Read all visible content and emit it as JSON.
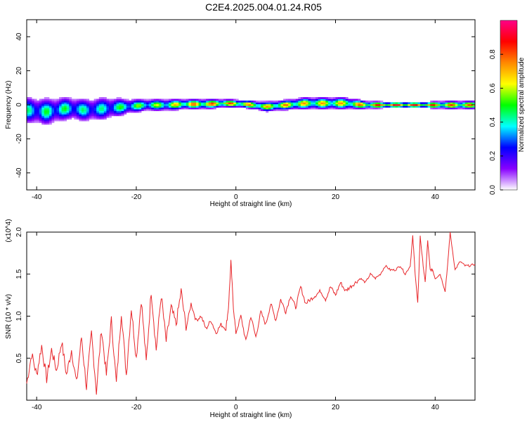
{
  "title": "C2E4.2025.004.01.24.R05",
  "chart_data": [
    {
      "type": "heatmap",
      "xlabel": "Height of straight line (km)",
      "ylabel": "Frequency (Hz)",
      "xlim": [
        -42,
        48
      ],
      "ylim": [
        -50,
        50
      ],
      "xticks": [
        -40,
        -20,
        0,
        20,
        40
      ],
      "yticks": [
        -40,
        -20,
        0,
        20,
        40
      ],
      "colorbar": {
        "label": "Normalized spectral amplitude",
        "range": [
          0,
          1
        ],
        "ticks": [
          "0.0",
          "0.2",
          "0.4",
          "0.6",
          "0.8"
        ],
        "colors": [
          "#ffffff",
          "#8800ff",
          "#0000ff",
          "#00ffff",
          "#00ff00",
          "#ffff00",
          "#ff8800",
          "#ff0000",
          "#ff0088"
        ]
      },
      "band": [
        {
          "x": -42,
          "f": -3,
          "amp": 0.45,
          "spread": 7
        },
        {
          "x": -38,
          "f": -4,
          "amp": 0.5,
          "spread": 7
        },
        {
          "x": -34,
          "f": -2,
          "amp": 0.5,
          "spread": 6
        },
        {
          "x": -30,
          "f": -3,
          "amp": 0.45,
          "spread": 6
        },
        {
          "x": -26,
          "f": -2,
          "amp": 0.45,
          "spread": 6
        },
        {
          "x": -22,
          "f": -1,
          "amp": 0.55,
          "spread": 4
        },
        {
          "x": -18,
          "f": 0,
          "amp": 0.6,
          "spread": 3
        },
        {
          "x": -14,
          "f": 0,
          "amp": 0.65,
          "spread": 3
        },
        {
          "x": -10,
          "f": 0.5,
          "amp": 0.8,
          "spread": 2.5
        },
        {
          "x": -6,
          "f": 0.5,
          "amp": 0.85,
          "spread": 2.5
        },
        {
          "x": -2,
          "f": 1,
          "amp": 0.85,
          "spread": 2
        },
        {
          "x": 2,
          "f": 0.5,
          "amp": 0.8,
          "spread": 2
        },
        {
          "x": 6,
          "f": -1,
          "amp": 0.75,
          "spread": 2.5
        },
        {
          "x": 10,
          "f": 0,
          "amp": 0.8,
          "spread": 2.5
        },
        {
          "x": 14,
          "f": 1,
          "amp": 0.75,
          "spread": 3
        },
        {
          "x": 18,
          "f": 1,
          "amp": 0.75,
          "spread": 3
        },
        {
          "x": 22,
          "f": 1,
          "amp": 0.75,
          "spread": 3
        },
        {
          "x": 26,
          "f": 0,
          "amp": 0.85,
          "spread": 2
        },
        {
          "x": 30,
          "f": 0,
          "amp": 0.95,
          "spread": 1.5
        },
        {
          "x": 34,
          "f": 0,
          "amp": 0.95,
          "spread": 1.5
        },
        {
          "x": 38,
          "f": 0,
          "amp": 0.9,
          "spread": 1.5
        },
        {
          "x": 42,
          "f": 0,
          "amp": 0.85,
          "spread": 2
        },
        {
          "x": 46,
          "f": 0,
          "amp": 0.85,
          "spread": 2
        },
        {
          "x": 48,
          "f": 0,
          "amp": 0.8,
          "spread": 2
        }
      ]
    },
    {
      "type": "line",
      "xlabel": "Height of straight line (km)",
      "ylabel": "SNR (10 * v/v)",
      "y_multiplier": "(x10^4)",
      "xlim": [
        -42,
        48
      ],
      "ylim": [
        0,
        2.0
      ],
      "xticks": [
        -40,
        -20,
        0,
        20,
        40
      ],
      "yticks": [
        "0.5",
        "1.0",
        "1.5",
        "2.0"
      ],
      "series": [
        {
          "color": "#e8262a",
          "x": [
            -42,
            -41,
            -40,
            -39,
            -38,
            -37,
            -36,
            -35,
            -34,
            -33,
            -32,
            -31,
            -30,
            -29,
            -28,
            -27,
            -26,
            -25,
            -24,
            -23,
            -22,
            -21,
            -20,
            -19,
            -18,
            -17,
            -16,
            -15,
            -14,
            -13,
            -12,
            -11,
            -10,
            -9,
            -8,
            -7,
            -6,
            -5,
            -4,
            -3,
            -2,
            -1.5,
            -1,
            -0.5,
            0,
            1,
            2,
            3,
            4,
            5,
            6,
            7,
            8,
            9,
            10,
            11,
            12,
            13,
            14,
            15,
            16,
            17,
            18,
            19,
            20,
            21,
            22,
            23,
            24,
            25,
            26,
            27,
            28,
            29,
            30,
            31,
            32,
            33,
            34,
            35,
            35.5,
            36,
            36.5,
            37,
            37.5,
            38,
            38.5,
            39,
            39.5,
            40,
            41,
            42,
            42.5,
            43,
            44,
            45,
            46,
            47,
            48
          ],
          "y": [
            0.2,
            0.55,
            0.3,
            0.65,
            0.25,
            0.6,
            0.35,
            0.7,
            0.3,
            0.6,
            0.2,
            0.75,
            0.15,
            0.8,
            0.1,
            0.85,
            0.3,
            0.95,
            0.2,
            1.05,
            0.3,
            1.1,
            0.5,
            1.2,
            0.45,
            1.3,
            0.6,
            1.25,
            0.7,
            1.1,
            0.9,
            1.3,
            0.85,
            1.15,
            0.95,
            1.0,
            0.85,
            0.95,
            0.8,
            0.9,
            0.85,
            1.1,
            1.65,
            1.1,
            0.8,
            1.0,
            0.7,
            1.0,
            0.75,
            1.05,
            0.9,
            1.15,
            0.95,
            1.2,
            1.05,
            1.25,
            1.1,
            1.35,
            1.15,
            1.2,
            1.25,
            1.3,
            1.2,
            1.35,
            1.25,
            1.4,
            1.3,
            1.35,
            1.4,
            1.45,
            1.4,
            1.5,
            1.45,
            1.5,
            1.6,
            1.55,
            1.55,
            1.6,
            1.5,
            1.6,
            1.95,
            1.5,
            1.15,
            1.95,
            1.65,
            1.4,
            1.9,
            1.55,
            1.55,
            1.45,
            1.5,
            1.3,
            1.6,
            2.0,
            1.55,
            1.65,
            1.6,
            1.6,
            1.62
          ]
        }
      ]
    }
  ]
}
